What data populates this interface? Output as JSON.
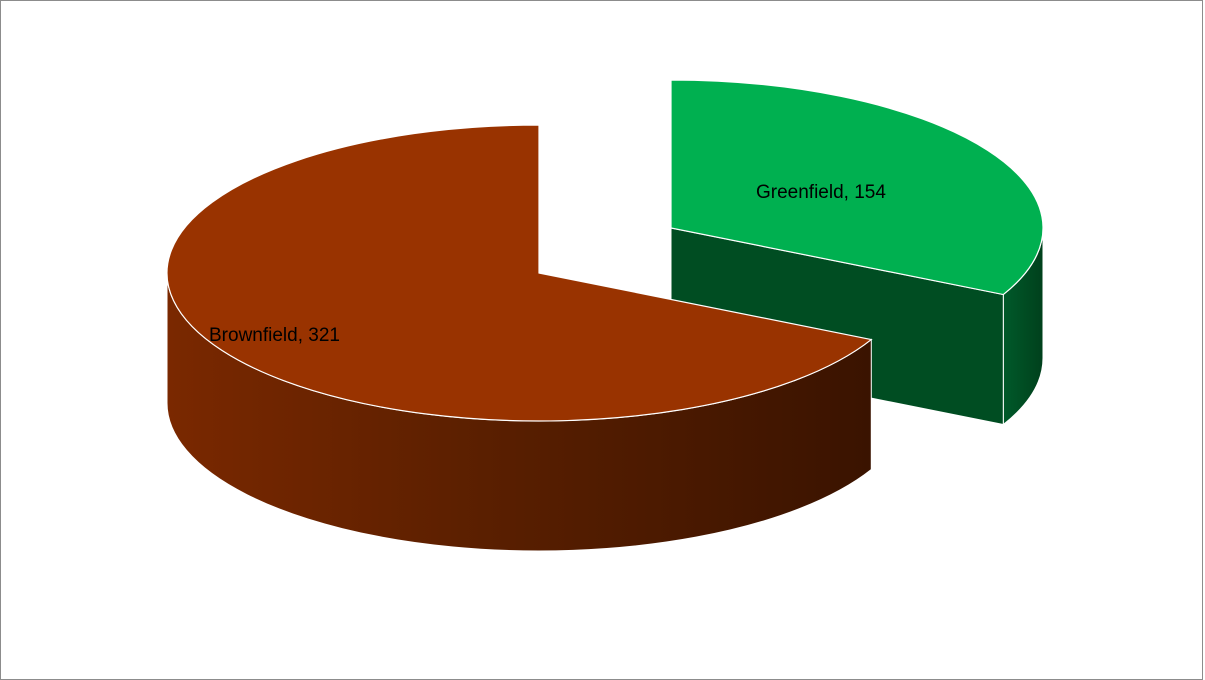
{
  "chart_data": {
    "type": "pie",
    "style": "3d-exploded",
    "categories": [
      "Brownfield",
      "Greenfield"
    ],
    "values": [
      321,
      154
    ],
    "data_labels": [
      "Brownfield, 321",
      "Greenfield, 154"
    ],
    "exploded": [
      "Greenfield"
    ],
    "colors": {
      "Brownfield": "#993300",
      "Greenfield": "#00b050"
    },
    "legend": "none",
    "title": ""
  }
}
